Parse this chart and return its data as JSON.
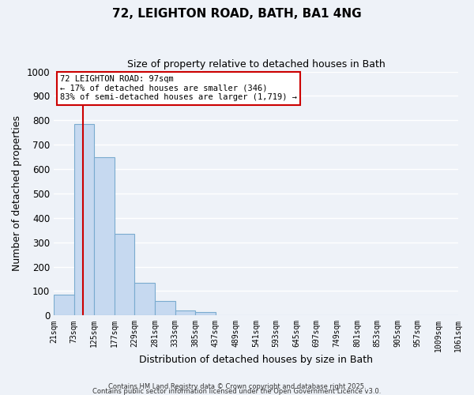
{
  "title": "72, LEIGHTON ROAD, BATH, BA1 4NG",
  "subtitle": "Size of property relative to detached houses in Bath",
  "xlabel": "Distribution of detached houses by size in Bath",
  "ylabel": "Number of detached properties",
  "bin_labels": [
    "21sqm",
    "73sqm",
    "125sqm",
    "177sqm",
    "229sqm",
    "281sqm",
    "333sqm",
    "385sqm",
    "437sqm",
    "489sqm",
    "541sqm",
    "593sqm",
    "645sqm",
    "697sqm",
    "749sqm",
    "801sqm",
    "853sqm",
    "905sqm",
    "957sqm",
    "1009sqm",
    "1061sqm"
  ],
  "bar_values": [
    85,
    785,
    648,
    335,
    133,
    58,
    22,
    13,
    0,
    0,
    0,
    0,
    0,
    0,
    0,
    0,
    0,
    0,
    0,
    0
  ],
  "bar_color": "#c6d9f0",
  "bar_edge_color": "#7aabcf",
  "vline_x": 1.46,
  "vline_color": "#cc0000",
  "annotation_title": "72 LEIGHTON ROAD: 97sqm",
  "annotation_line1": "← 17% of detached houses are smaller (346)",
  "annotation_line2": "83% of semi-detached houses are larger (1,719) →",
  "annotation_box_color": "#ffffff",
  "annotation_box_edge": "#cc0000",
  "ylim": [
    0,
    1000
  ],
  "yticks": [
    0,
    100,
    200,
    300,
    400,
    500,
    600,
    700,
    800,
    900,
    1000
  ],
  "background_color": "#eef2f8",
  "grid_color": "#ffffff",
  "footer1": "Contains HM Land Registry data © Crown copyright and database right 2025.",
  "footer2": "Contains public sector information licensed under the Open Government Licence v3.0."
}
